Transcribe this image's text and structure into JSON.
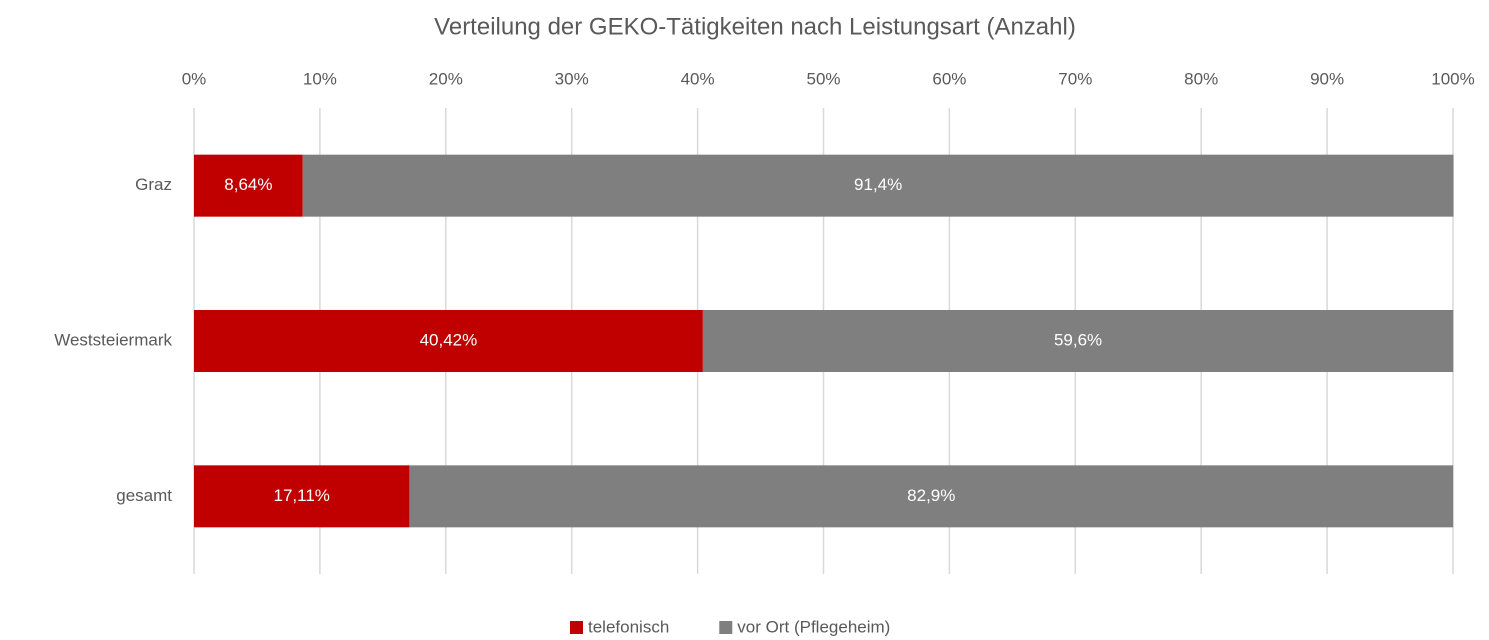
{
  "chart_data": {
    "type": "stacked_bar_horizontal",
    "title": "Verteilung der GEKO-Tätigkeiten nach Leistungsart (Anzahl)",
    "categories": [
      "Graz",
      "Weststeiermark",
      "gesamt"
    ],
    "series": [
      {
        "name": "telefonisch",
        "color": "#c00000",
        "values": [
          8.64,
          40.42,
          17.11
        ],
        "value_labels": [
          "8,64%",
          "40,42%",
          "17,11%"
        ]
      },
      {
        "name": "vor Ort (Pflegeheim)",
        "color": "#7f7f7f",
        "values": [
          91.4,
          59.6,
          82.9
        ],
        "value_labels": [
          "91,4%",
          "59,6%",
          "82,9%"
        ]
      }
    ],
    "xlim": [
      0,
      100
    ],
    "xticks": [
      {
        "value": 0,
        "label": "0%"
      },
      {
        "value": 10,
        "label": "10%"
      },
      {
        "value": 20,
        "label": "20%"
      },
      {
        "value": 30,
        "label": "30%"
      },
      {
        "value": 40,
        "label": "40%"
      },
      {
        "value": 50,
        "label": "50%"
      },
      {
        "value": 60,
        "label": "60%"
      },
      {
        "value": 70,
        "label": "70%"
      },
      {
        "value": 80,
        "label": "80%"
      },
      {
        "value": 90,
        "label": "90%"
      },
      {
        "value": 100,
        "label": "100%"
      }
    ],
    "grid": true,
    "legend": "bottom"
  }
}
